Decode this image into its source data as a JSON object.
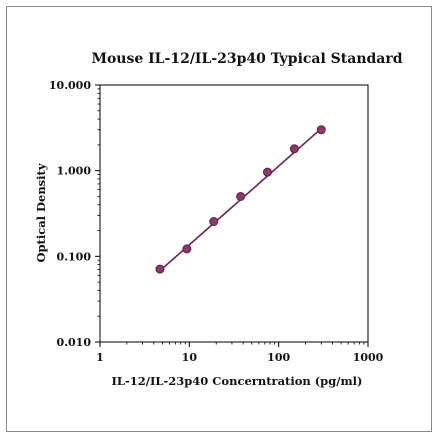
{
  "chart_data": {
    "type": "scatter",
    "title": "Mouse IL-12/IL-23p40 Typical Standard",
    "xlabel": "IL-12/IL-23p40 Concerntration (pg/ml)",
    "ylabel": "Optical Density",
    "xscale": "log",
    "yscale": "log",
    "xlim": [
      1,
      1000
    ],
    "ylim": [
      0.01,
      10
    ],
    "xticks": [
      "1",
      "10",
      "100",
      "1000"
    ],
    "yticks": [
      "10.000",
      "1.000",
      "0.100",
      "0.010"
    ],
    "grid": false,
    "legend": "none",
    "points": {
      "x": [
        4.69,
        9.38,
        18.75,
        37.5,
        75,
        150,
        300
      ],
      "y": [
        0.071,
        0.122,
        0.255,
        0.5,
        0.96,
        1.8,
        3.0
      ]
    },
    "fit_line": {
      "x": [
        4.69,
        300
      ],
      "y": [
        0.068,
        3.1
      ]
    },
    "colors": {
      "marker": "#8b3a6b",
      "marker_edge": "#5c1f44",
      "line": "#6e1f4f"
    }
  }
}
